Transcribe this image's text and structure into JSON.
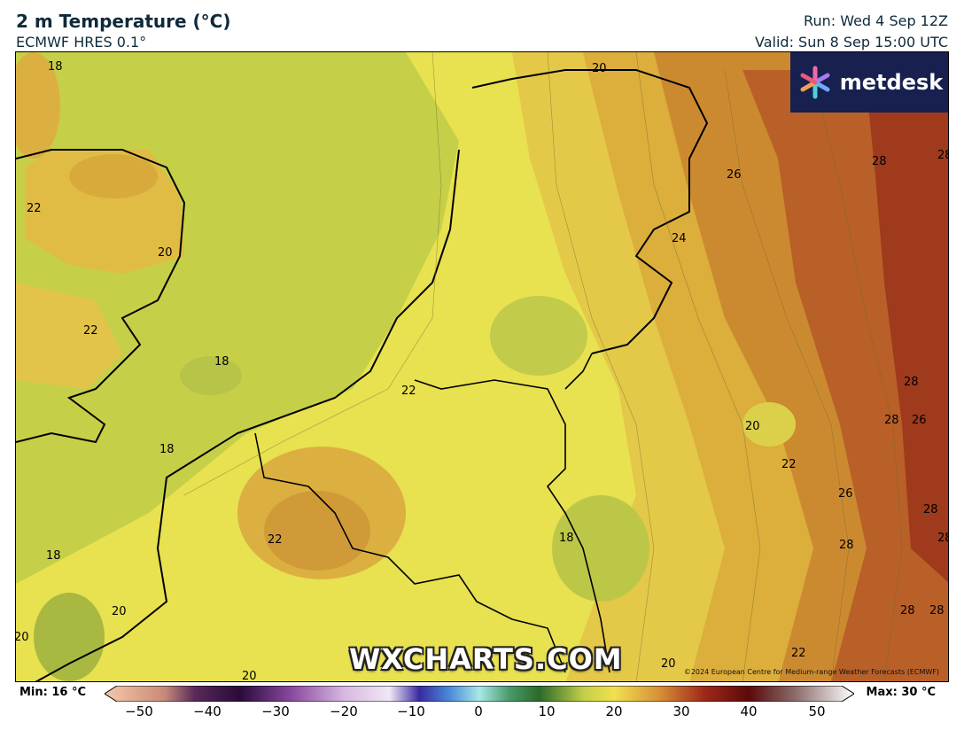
{
  "header": {
    "title": "2 m Temperature (°C)",
    "model": "ECMWF HRES 0.1°",
    "run": "Run: Wed 4 Sep 12Z",
    "valid": "Valid: Sun 8 Sep 15:00 UTC"
  },
  "logo": {
    "text": "metdesk",
    "icon": "flower-icon"
  },
  "watermark": {
    "text": "WXCHARTS.COM"
  },
  "copyright": "©2024 European Centre for Medium-range Weather Forecasts (ECMWF)",
  "contour_labels": [
    "18",
    "20",
    "22",
    "22",
    "20",
    "22",
    "18",
    "18",
    "22",
    "18",
    "20",
    "20",
    "18",
    "22",
    "20",
    "26",
    "24",
    "28",
    "28",
    "28",
    "26",
    "20",
    "22",
    "26",
    "28",
    "28",
    "28",
    "28",
    "28",
    "20",
    "28"
  ],
  "colorbar": {
    "min_label": "Min: 16 °C",
    "max_label": "Max: 30 °C",
    "ticks": [
      "−50",
      "−40",
      "−30",
      "−20",
      "−10",
      "0",
      "10",
      "20",
      "30",
      "40",
      "50"
    ]
  },
  "colors": {
    "cool": "#c4cf4a",
    "mild": "#e8e050",
    "warm": "#e0b840",
    "hot": "#c8782c",
    "hottest": "#9c2a1a",
    "logo_bg": "#17204f"
  }
}
